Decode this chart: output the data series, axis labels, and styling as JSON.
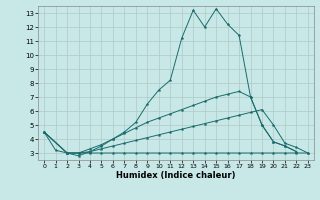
{
  "xlabel": "Humidex (Indice chaleur)",
  "background_color": "#c8e8e8",
  "grid_color": "#b0c8c8",
  "line_color": "#1a6b6b",
  "xlim": [
    -0.5,
    23.5
  ],
  "ylim": [
    2.5,
    13.5
  ],
  "yticks": [
    3,
    4,
    5,
    6,
    7,
    8,
    9,
    10,
    11,
    12,
    13
  ],
  "xticks": [
    0,
    1,
    2,
    3,
    4,
    5,
    6,
    7,
    8,
    9,
    10,
    11,
    12,
    13,
    14,
    15,
    16,
    17,
    18,
    19,
    20,
    21,
    22,
    23
  ],
  "series": [
    {
      "x": [
        0,
        1,
        2,
        3,
        4,
        5,
        6,
        7,
        8,
        9,
        10,
        11,
        12,
        13,
        14,
        15,
        16,
        17,
        18,
        19,
        20,
        21,
        22,
        23
      ],
      "y": [
        4.5,
        3.2,
        3.0,
        2.8,
        3.1,
        3.5,
        4.0,
        4.5,
        5.2,
        6.5,
        7.5,
        8.2,
        11.2,
        13.2,
        12.0,
        13.3,
        12.2,
        11.4,
        7.0,
        5.0,
        3.8,
        3.5,
        3.1,
        null
      ]
    },
    {
      "x": [
        0,
        2,
        3,
        4,
        5,
        6,
        7,
        8,
        9,
        10,
        11,
        12,
        13,
        14,
        15,
        16,
        17,
        18,
        19,
        20,
        21,
        22,
        23
      ],
      "y": [
        4.5,
        3.0,
        3.0,
        3.3,
        3.6,
        4.0,
        4.4,
        4.8,
        5.2,
        5.5,
        5.8,
        6.1,
        6.4,
        6.7,
        7.0,
        7.2,
        7.4,
        7.0,
        5.0,
        3.8,
        3.5,
        3.1,
        null
      ]
    },
    {
      "x": [
        0,
        2,
        3,
        4,
        5,
        6,
        7,
        8,
        9,
        10,
        11,
        12,
        13,
        14,
        15,
        16,
        17,
        18,
        19,
        20,
        21,
        22,
        23
      ],
      "y": [
        4.5,
        3.0,
        3.0,
        3.1,
        3.3,
        3.5,
        3.7,
        3.9,
        4.1,
        4.3,
        4.5,
        4.7,
        4.9,
        5.1,
        5.3,
        5.5,
        5.7,
        5.9,
        6.1,
        5.0,
        3.7,
        3.4,
        3.0
      ]
    },
    {
      "x": [
        0,
        2,
        3,
        4,
        5,
        6,
        7,
        8,
        9,
        10,
        11,
        12,
        13,
        14,
        15,
        16,
        17,
        18,
        19,
        20,
        21,
        22,
        23
      ],
      "y": [
        4.5,
        3.0,
        3.0,
        3.0,
        3.0,
        3.0,
        3.0,
        3.0,
        3.0,
        3.0,
        3.0,
        3.0,
        3.0,
        3.0,
        3.0,
        3.0,
        3.0,
        3.0,
        3.0,
        3.0,
        3.0,
        3.0,
        3.0
      ]
    }
  ]
}
